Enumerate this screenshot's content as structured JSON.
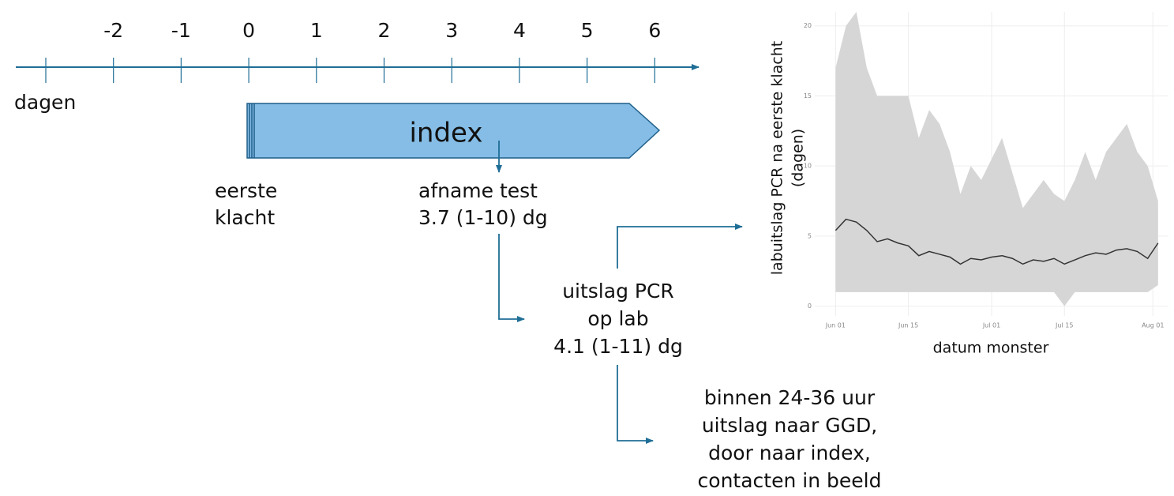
{
  "timeline": {
    "label": "dagen",
    "ticks": [
      null,
      -2,
      -1,
      0,
      1,
      2,
      3,
      4,
      5,
      6
    ],
    "color": "#1f6e96"
  },
  "index_bar": {
    "label": "index",
    "fill": "#85bde6",
    "stroke": "#1f5f8a"
  },
  "start": {
    "lines": [
      "eerste",
      "klacht"
    ]
  },
  "test": {
    "lines": [
      "afname test",
      "3.7 (1-10) dg"
    ]
  },
  "lab": {
    "lines": [
      "uitslag PCR",
      "op lab",
      "4.1 (1-11) dg"
    ]
  },
  "ggd": {
    "lines": [
      "binnen 24-36 uur",
      "uitslag naar GGD,",
      "door naar index,",
      "contacten in beeld"
    ]
  },
  "chart_data": {
    "type": "line",
    "ylabel": [
      "labuitslag PCR na eerste klacht",
      "(dagen)"
    ],
    "xlabel": "datum monster",
    "x": [
      "Jun 01",
      "Jun 03",
      "Jun 05",
      "Jun 07",
      "Jun 09",
      "Jun 11",
      "Jun 13",
      "Jun 15",
      "Jun 17",
      "Jun 19",
      "Jun 21",
      "Jun 23",
      "Jun 25",
      "Jun 27",
      "Jun 29",
      "Jul 01",
      "Jul 03",
      "Jul 05",
      "Jul 07",
      "Jul 09",
      "Jul 11",
      "Jul 13",
      "Jul 15",
      "Jul 17",
      "Jul 19",
      "Jul 21",
      "Jul 23",
      "Jul 25",
      "Jul 27",
      "Jul 29",
      "Jul 31",
      "Aug 02"
    ],
    "values": [
      5.4,
      6.2,
      6.0,
      5.4,
      4.6,
      4.8,
      4.5,
      4.3,
      3.6,
      3.9,
      3.7,
      3.5,
      3.0,
      3.4,
      3.3,
      3.5,
      3.6,
      3.4,
      3.0,
      3.3,
      3.2,
      3.4,
      3.0,
      3.3,
      3.6,
      3.8,
      3.7,
      4.0,
      4.1,
      3.9,
      3.4,
      4.5
    ],
    "band_upper": [
      17,
      20,
      21,
      17,
      15,
      15,
      15,
      15,
      12,
      14,
      13,
      11,
      8,
      10,
      9,
      10.5,
      12,
      9.5,
      7,
      8,
      9,
      8,
      7.5,
      9,
      11,
      9,
      11,
      12,
      13,
      11,
      10,
      7.5
    ],
    "band_lower": [
      1,
      1,
      1,
      1,
      1,
      1,
      1,
      1,
      1,
      1,
      1,
      1,
      1,
      1,
      1,
      1,
      1,
      1,
      1,
      1,
      1,
      1,
      0,
      1,
      1,
      1,
      1,
      1,
      1,
      1,
      1,
      1.5
    ],
    "color": "#333333",
    "band_color": "#d6d6d6",
    "ylim": [
      -0.7,
      21
    ],
    "yticks": [
      0,
      5,
      10,
      15,
      20
    ],
    "xlim": [
      "May 28",
      "Aug 04"
    ],
    "xticks": [
      "Jun 01",
      "Jun 15",
      "Jul 01",
      "Jul 15",
      "Aug 01"
    ],
    "grid": true
  }
}
